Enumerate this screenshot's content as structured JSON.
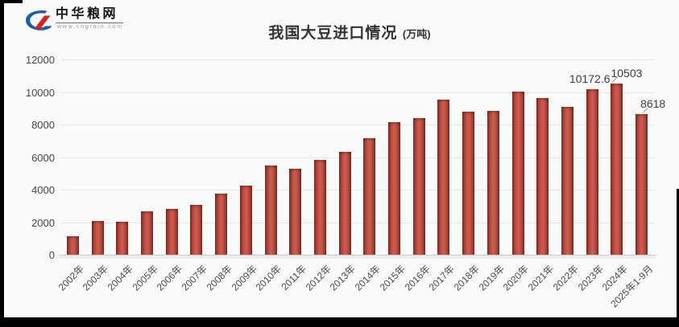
{
  "logo": {
    "brand": "中华粮网",
    "website": "www.cngrain.com"
  },
  "title": {
    "text": "我国大豆进口情况",
    "unit": "(万吨)"
  },
  "chart_data": {
    "type": "bar",
    "title": "我国大豆进口情况 (万吨)",
    "categories": [
      "2002年",
      "2003年",
      "2004年",
      "2005年",
      "2006年",
      "2007年",
      "2008年",
      "2009年",
      "2010年",
      "2011年",
      "2012年",
      "2013年",
      "2014年",
      "2015年",
      "2016年",
      "2017年",
      "2018年",
      "2019年",
      "2020年",
      "2021年",
      "2022年",
      "2023年",
      "2024年",
      "2025年1-9月"
    ],
    "values": [
      1132,
      2074,
      2023,
      2659,
      2824,
      3082,
      3744,
      4255,
      5480,
      5264,
      5838,
      6338,
      7140,
      8169,
      8391,
      9554,
      8803,
      8851,
      10033,
      9652,
      9108,
      10172.6,
      10503,
      8618
    ],
    "data_labels": [
      {
        "category": "2023年",
        "text": "10172.6"
      },
      {
        "category": "2024年",
        "text": "10503"
      },
      {
        "category": "2025年1-9月",
        "text": "8618"
      }
    ],
    "xlabel": "",
    "ylabel": "",
    "ylim": [
      0,
      12000
    ],
    "yticks": [
      0,
      2000,
      4000,
      6000,
      8000,
      10000,
      12000
    ],
    "grid": true,
    "legend_position": "none",
    "bar_color": "#c0504d",
    "bar_edge_color": "#84291f",
    "grid_color": "#e3e4e4",
    "axis_text_color": "#4a4a4a"
  }
}
